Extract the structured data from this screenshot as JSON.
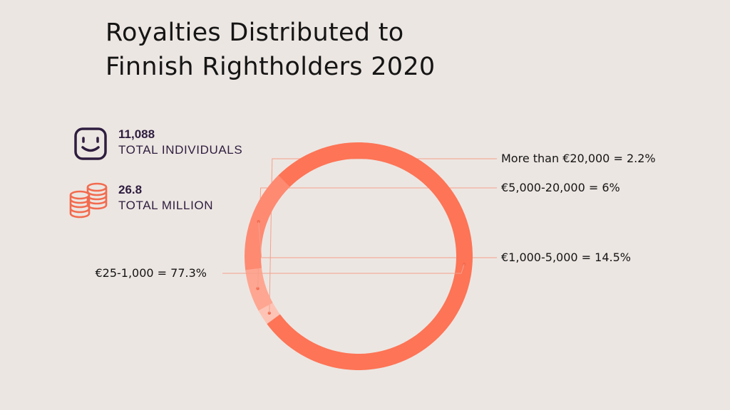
{
  "title_lines": [
    "Royalties Distributed to",
    "Finnish Rightholders 2020"
  ],
  "stats": {
    "individuals": {
      "value": "11,088",
      "label": "TOTAL INDIVIDUALS",
      "icon": "smiley-face-icon"
    },
    "money": {
      "value": "26.8",
      "label": "TOTAL MILLION",
      "icon": "coin-stacks-icon"
    }
  },
  "colors": {
    "background": "#ece6e2",
    "icon_dark": "#2e1d3f",
    "icon_coral": "#f26b4f"
  },
  "chart_data": {
    "type": "pie",
    "donut": true,
    "title": "Royalties Distributed to Finnish Rightholders 2020",
    "slices": [
      {
        "range": "€25-1,000",
        "value": 77.3,
        "label": "€25-1,000 = 77.3%",
        "color": "#fd7456"
      },
      {
        "range": "€1,000-5,000",
        "value": 14.5,
        "label": "€1,000-5,000 = 14.5%",
        "color": "#fe8a72"
      },
      {
        "range": "€5,000-20,000",
        "value": 6,
        "label": "€5,000-20,000 = 6%",
        "color": "#fea691"
      },
      {
        "range": "More than €20,000",
        "value": 2.2,
        "label": "More than €20,000 = 2.2%",
        "color": "#fdc4b6"
      }
    ]
  }
}
